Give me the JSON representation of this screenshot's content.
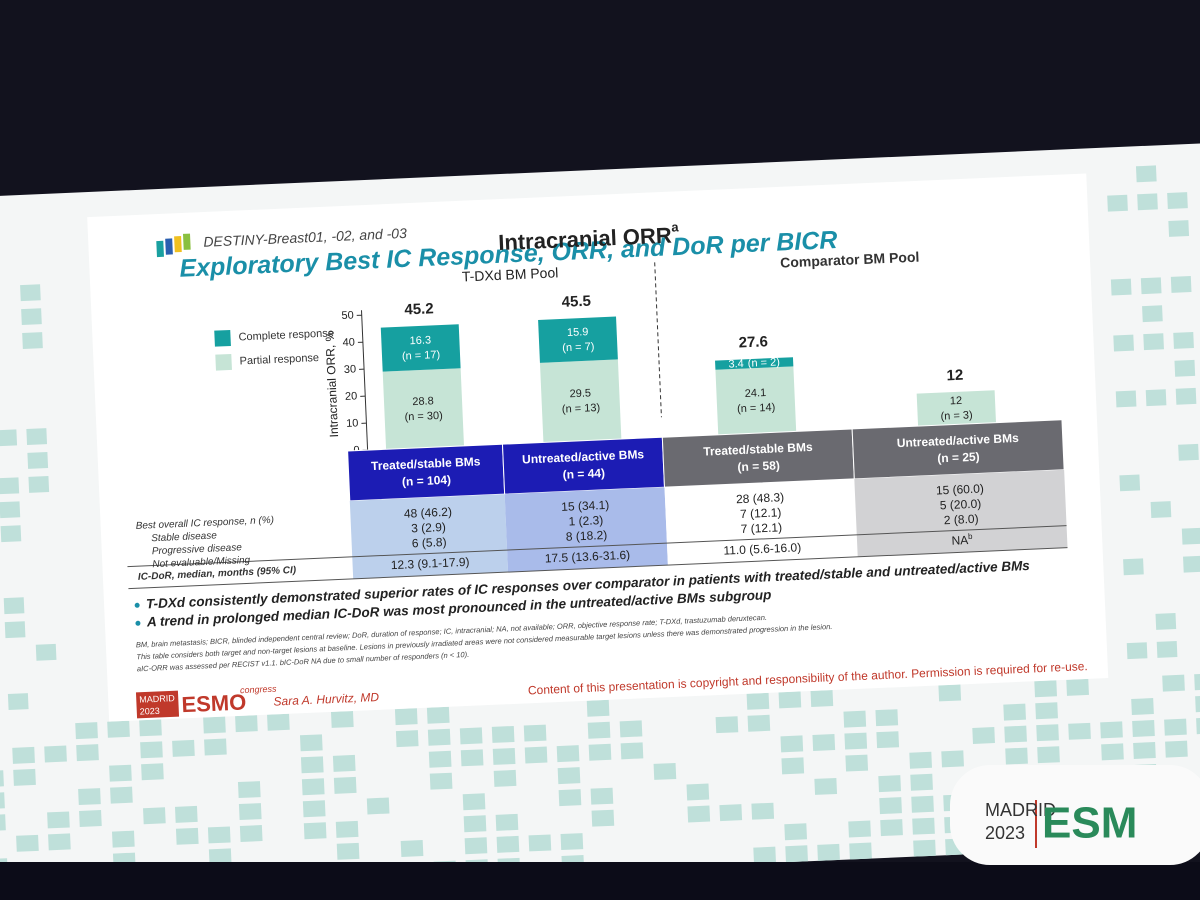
{
  "header": {
    "study": "DESTINY-Breast01, -02, and -03",
    "title": "Exploratory Best IC Response, ORR, and DoR per BICR"
  },
  "chart_data": {
    "type": "stacked_bar",
    "title": "Intracranial ORR",
    "title_note": "a",
    "group_labels": [
      "T-DXd BM Pool",
      "Comparator BM Pool"
    ],
    "ylabel": "Intracranial ORR, %",
    "categories": [
      "Treated/stable BMs",
      "Untreated/active BMs",
      "Treated/stable BMs",
      "Untreated/active BMs"
    ],
    "category_n": [
      "(n = 104)",
      "(n = 44)",
      "(n = 58)",
      "(n = 25)"
    ],
    "series": [
      {
        "name": "Partial response",
        "color": "#c6e4d6",
        "values": [
          28.8,
          29.5,
          24.1,
          12
        ],
        "counts": [
          "(n = 30)",
          "(n = 13)",
          "(n = 14)",
          "(n = 3)"
        ]
      },
      {
        "name": "Complete response",
        "color": "#16a0a0",
        "values": [
          16.3,
          15.9,
          3.4,
          null
        ],
        "counts": [
          "(n = 17)",
          "(n = 7)",
          "(n = 2)",
          null
        ]
      }
    ],
    "totals": [
      45.2,
      45.5,
      27.6,
      12
    ],
    "ylim": [
      0,
      50
    ],
    "yticks": [
      0,
      10,
      20,
      30,
      40,
      50
    ]
  },
  "table": {
    "row_header": "Best overall IC response, n (%)",
    "row_labels": [
      "Stable disease",
      "Progressive disease",
      "Not evaluable/Missing"
    ],
    "columns": [
      [
        "48 (46.2)",
        "3 (2.9)",
        "6 (5.8)"
      ],
      [
        "15 (34.1)",
        "1 (2.3)",
        "8 (18.2)"
      ],
      [
        "28 (48.3)",
        "7 (12.1)",
        "7 (12.1)"
      ],
      [
        "15 (60.0)",
        "5 (20.0)",
        "2 (8.0)"
      ]
    ],
    "dor_label": "IC-DoR, median, months (95% CI)",
    "dor": [
      "12.3 (9.1-17.9)",
      "17.5 (13.6-31.6)",
      "11.0 (5.6-16.0)",
      "NA"
    ],
    "dor_note": "b"
  },
  "bullets": [
    "T-DXd consistently demonstrated superior rates of IC responses over comparator in patients with treated/stable and untreated/active BMs",
    "A trend in prolonged median IC-DoR was most pronounced in the untreated/active BMs subgroup"
  ],
  "footnotes": [
    "BM, brain metastasis; BICR, blinded independent central review; DoR, duration of response; IC, intracranial; NA, not available; ORR, objective response rate; T-DXd, trastuzumab deruxtecan.",
    "This table considers both target and non-target lesions at baseline. Lesions in previously irradiated areas were not considered measurable target lesions unless there was demonstrated progression in the lesion.",
    "aIC-ORR was assessed per RECIST v1.1. bIC-DoR NA due to small number of responders (n < 10)."
  ],
  "footer": {
    "logo_place": "MADRID",
    "logo_year": "2023",
    "logo_brand": "ESMO",
    "logo_sub": "congress",
    "author": "Sara A. Hurvitz, MD",
    "copyright": "Content of this presentation is copyright and responsibility of the author. Permission is required for re-use."
  },
  "corner": {
    "place": "MADRID",
    "year": "2023",
    "brand": "ESM"
  }
}
